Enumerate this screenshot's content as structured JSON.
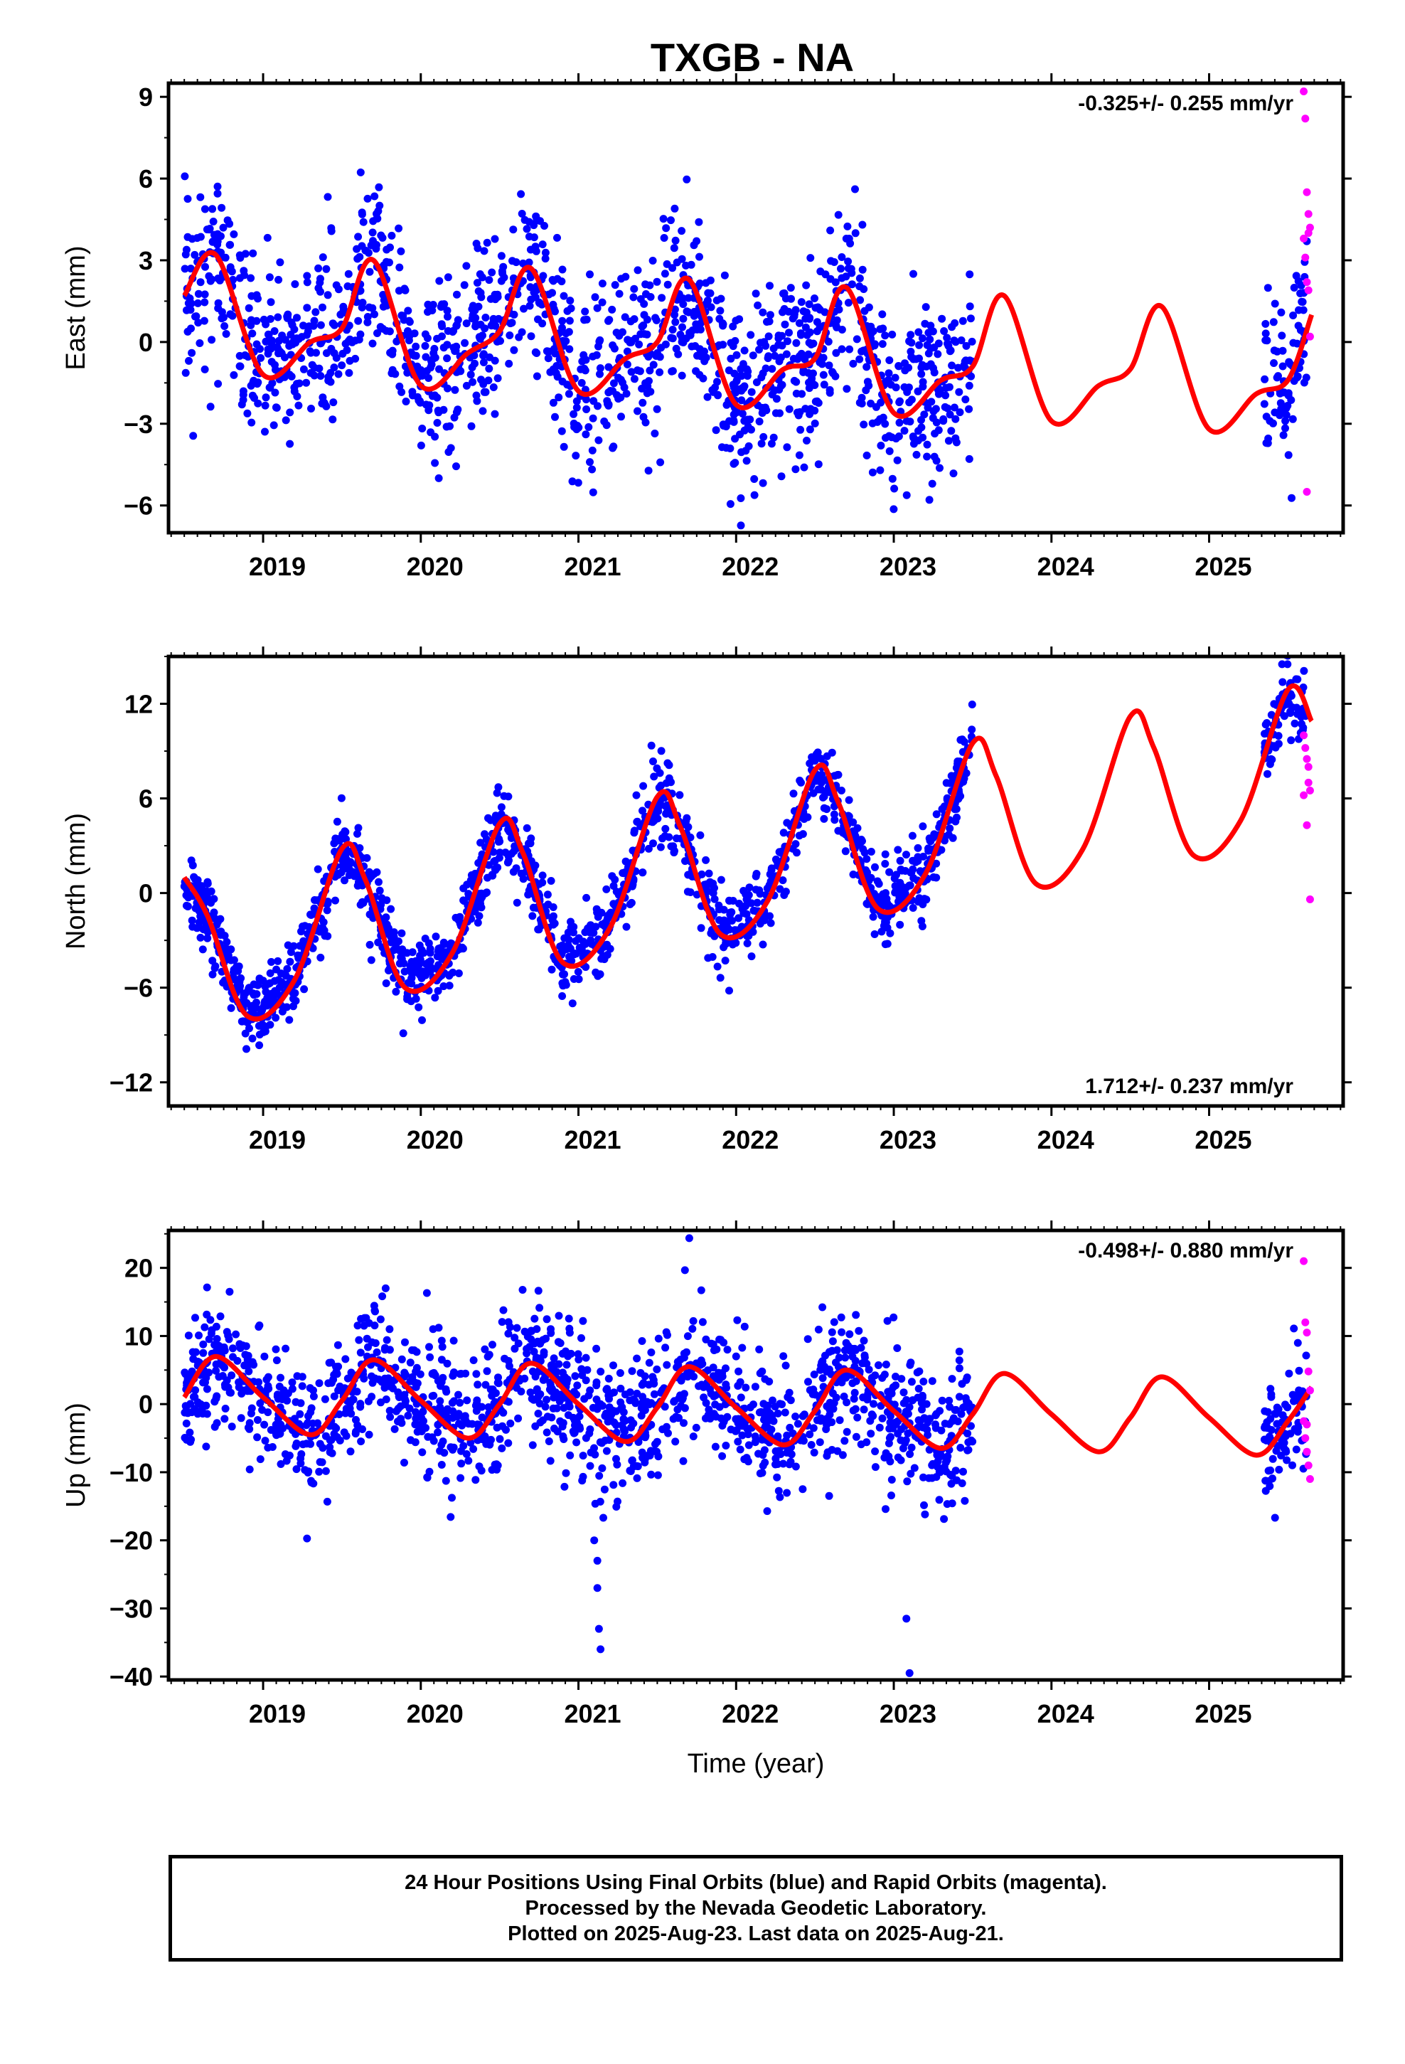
{
  "chart_data": {
    "type": "scatter",
    "title": "TXGB - NA",
    "xlabel": "Time (year)",
    "x_ticks": [
      "2019",
      "2020",
      "2021",
      "2022",
      "2023",
      "2024",
      "2025"
    ],
    "xlim": [
      2018.4,
      2025.85
    ],
    "legend": [
      "Final Orbits (blue)",
      "Rapid Orbits (magenta)",
      "Model fit (red line)"
    ],
    "colors": {
      "final": "#0000ff",
      "rapid": "#ff00ff",
      "model": "#ff0000"
    },
    "panels": [
      {
        "name": "East",
        "ylabel": "East (mm)",
        "ylim": [
          -7,
          9.5
        ],
        "yticks": [
          -6,
          -3,
          0,
          3,
          6,
          9
        ],
        "rate": "-0.325+/- 0.255 mm/yr",
        "rate_position": "top-right",
        "model": {
          "x": [
            2018.5,
            2018.7,
            2019.0,
            2019.3,
            2019.5,
            2019.7,
            2020.0,
            2020.3,
            2020.5,
            2020.7,
            2021.0,
            2021.3,
            2021.5,
            2021.7,
            2022.0,
            2022.3,
            2022.5,
            2022.7,
            2023.0,
            2023.3,
            2023.5,
            2023.7,
            2024.0,
            2024.3,
            2024.5,
            2024.7,
            2025.0,
            2025.3,
            2025.5,
            2025.65
          ],
          "y": [
            1.7,
            3.2,
            -1.2,
            0.0,
            0.5,
            3.0,
            -1.6,
            -0.4,
            0.4,
            2.7,
            -1.8,
            -0.6,
            0.0,
            2.3,
            -2.3,
            -1.0,
            -0.6,
            2.0,
            -2.6,
            -1.4,
            -0.9,
            1.7,
            -2.9,
            -1.6,
            -1.0,
            1.3,
            -3.2,
            -1.9,
            -1.4,
            1.0
          ]
        },
        "final_clusters": [
          {
            "start": 2018.5,
            "end": 2023.5,
            "spread": 1.6
          },
          {
            "start": 2025.35,
            "end": 2025.62,
            "spread": 1.6
          }
        ],
        "rapid": {
          "x": [
            2025.6,
            2025.61,
            2025.62,
            2025.63,
            2025.64,
            2025.6,
            2025.61,
            2025.62,
            2025.63,
            2025.64,
            2025.62,
            2025.63
          ],
          "y": [
            9.2,
            8.2,
            5.5,
            4.7,
            4.2,
            3.8,
            3.1,
            2.2,
            1.9,
            0.2,
            -5.5,
            4.0
          ]
        }
      },
      {
        "name": "North",
        "ylabel": "North (mm)",
        "ylim": [
          -13.5,
          15
        ],
        "yticks": [
          -12,
          -6,
          0,
          6,
          12
        ],
        "rate": "1.712+/- 0.237 mm/yr",
        "rate_position": "bottom-right",
        "model": {
          "x": [
            2018.5,
            2018.65,
            2018.9,
            2019.2,
            2019.5,
            2019.65,
            2019.9,
            2020.2,
            2020.5,
            2020.65,
            2020.9,
            2021.2,
            2021.5,
            2021.65,
            2021.9,
            2022.2,
            2022.5,
            2022.65,
            2022.9,
            2023.2,
            2023.5,
            2023.65,
            2023.9,
            2024.2,
            2024.5,
            2024.65,
            2024.9,
            2025.2,
            2025.5,
            2025.65
          ],
          "y": [
            1.0,
            -1.5,
            -7.8,
            -5.5,
            2.8,
            0.8,
            -6.0,
            -3.8,
            4.4,
            2.5,
            -4.4,
            -2.2,
            6.1,
            4.1,
            -2.6,
            -0.5,
            7.8,
            5.7,
            -1.0,
            1.2,
            9.5,
            7.4,
            0.6,
            2.8,
            11.2,
            9.2,
            2.4,
            4.6,
            12.9,
            10.9
          ]
        },
        "final_clusters": [
          {
            "start": 2018.5,
            "end": 2023.5,
            "spread": 1.2
          },
          {
            "start": 2025.35,
            "end": 2025.62,
            "spread": 1.2
          }
        ],
        "rapid": {
          "x": [
            2025.6,
            2025.61,
            2025.62,
            2025.63,
            2025.64,
            2025.6,
            2025.62,
            2025.63,
            2025.64
          ],
          "y": [
            10.0,
            9.2,
            8.5,
            7.0,
            6.5,
            6.2,
            4.3,
            8.0,
            -0.4
          ]
        }
      },
      {
        "name": "Up",
        "ylabel": "Up (mm)",
        "ylim": [
          -40.5,
          25.5
        ],
        "yticks": [
          -40,
          -30,
          -20,
          -10,
          0,
          10,
          20
        ],
        "rate": "-0.498+/- 0.880 mm/yr",
        "rate_position": "top-right",
        "model": {
          "x": [
            2018.5,
            2018.7,
            2019.0,
            2019.3,
            2019.5,
            2019.7,
            2020.0,
            2020.3,
            2020.5,
            2020.7,
            2021.0,
            2021.3,
            2021.5,
            2021.7,
            2022.0,
            2022.3,
            2022.5,
            2022.7,
            2023.0,
            2023.3,
            2023.5,
            2023.7,
            2024.0,
            2024.3,
            2024.5,
            2024.7,
            2025.0,
            2025.3,
            2025.5,
            2025.65
          ],
          "y": [
            1.0,
            7.0,
            1.0,
            -4.5,
            0.5,
            6.5,
            0.5,
            -5.0,
            0.0,
            6.0,
            0.0,
            -5.5,
            -0.5,
            5.5,
            -0.5,
            -6.0,
            -1.0,
            5.0,
            -1.0,
            -6.5,
            -1.5,
            4.5,
            -1.5,
            -7.0,
            -2.0,
            4.0,
            -2.0,
            -7.5,
            -2.5,
            2.5
          ]
        },
        "final_clusters": [
          {
            "start": 2018.5,
            "end": 2023.5,
            "spread": 5.0
          },
          {
            "start": 2025.35,
            "end": 2025.62,
            "spread": 5.0
          }
        ],
        "outliers": {
          "x": [
            2021.1,
            2021.12,
            2021.12,
            2021.13,
            2021.14,
            2023.08,
            2023.1
          ],
          "y": [
            -20,
            -23,
            -27,
            -33,
            -36,
            -31.5,
            -39.5
          ]
        },
        "rapid": {
          "x": [
            2025.6,
            2025.61,
            2025.62,
            2025.63,
            2025.64,
            2025.6,
            2025.61,
            2025.62,
            2025.63,
            2025.64,
            2025.62
          ],
          "y": [
            21.0,
            12.0,
            10.5,
            4.8,
            2.0,
            -2.5,
            -5.0,
            -7.0,
            -9.0,
            -11.0,
            -3.0
          ]
        }
      }
    ]
  },
  "footer": {
    "line1": "24 Hour Positions Using Final Orbits (blue) and Rapid Orbits (magenta).",
    "line2": "Processed by the Nevada Geodetic Laboratory.",
    "line3": "Plotted on 2025-Aug-23. Last data on 2025-Aug-21."
  }
}
